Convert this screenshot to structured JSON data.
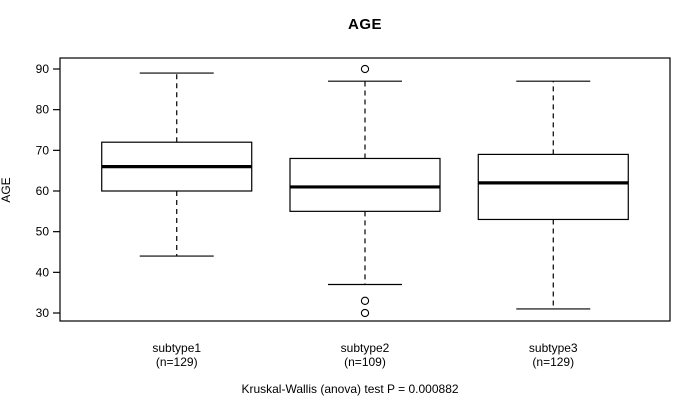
{
  "title": "AGE",
  "caption": "Kruskal-Wallis (anova) test P = 0.000882",
  "colors": {
    "line": "#000000",
    "background": "#ffffff",
    "box_fill": "#ffffff"
  },
  "chart_data": {
    "type": "boxplot",
    "title": "AGE",
    "xlabel": "",
    "ylabel": "AGE",
    "ylim": [
      30,
      90
    ],
    "yticks": [
      30,
      40,
      50,
      60,
      70,
      80,
      90
    ],
    "grid": false,
    "legend": "none",
    "annotation": "Kruskal-Wallis (anova) test P = 0.000882",
    "groups": [
      {
        "label": "subtype1",
        "sublabel": "(n=129)",
        "n": 129,
        "whisker_low": 44,
        "q1": 60,
        "median": 66,
        "q3": 72,
        "whisker_high": 89,
        "outliers": []
      },
      {
        "label": "subtype2",
        "sublabel": "(n=109)",
        "n": 109,
        "whisker_low": 37,
        "q1": 55,
        "median": 61,
        "q3": 68,
        "whisker_high": 87,
        "outliers": [
          90,
          33,
          30
        ]
      },
      {
        "label": "subtype3",
        "sublabel": "(n=129)",
        "n": 129,
        "whisker_low": 31,
        "q1": 53,
        "median": 62,
        "q3": 69,
        "whisker_high": 87,
        "outliers": []
      }
    ]
  }
}
